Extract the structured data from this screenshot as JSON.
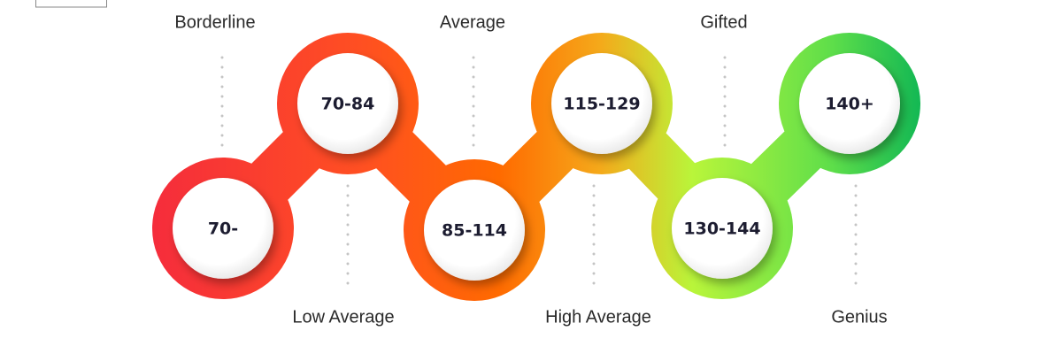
{
  "nodes": [
    {
      "range": "70-",
      "label": "Borderline"
    },
    {
      "range": "70-84",
      "label": "Low Average"
    },
    {
      "range": "85-114",
      "label": "Average"
    },
    {
      "range": "115-129",
      "label": "High Average"
    },
    {
      "range": "130-144",
      "label": "Gifted"
    },
    {
      "range": "140+",
      "label": "Genius"
    }
  ]
}
